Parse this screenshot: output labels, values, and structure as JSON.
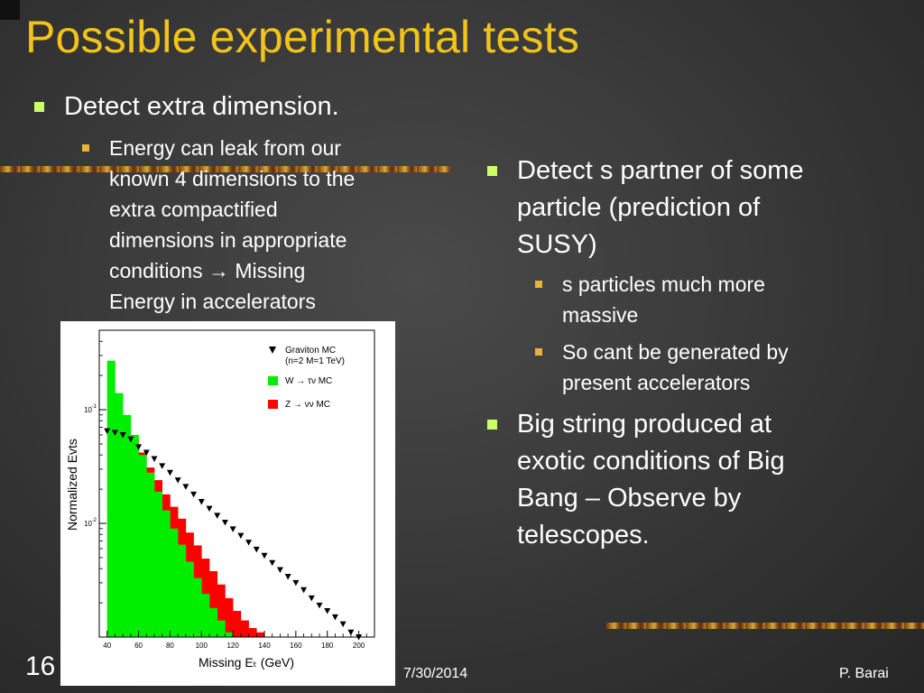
{
  "slide": {
    "title": "Possible experimental tests",
    "left_bullet": "Detect extra dimension.",
    "left_sub_bullet": [
      "Energy can leak from our",
      "known 4 dimensions to the",
      "extra compactified",
      "dimensions in appropriate",
      "conditions → Missing",
      "Energy in accelerators"
    ],
    "right_bullets": [
      {
        "lines": [
          "Detect s partner of some",
          "particle (prediction of",
          "SUSY)"
        ]
      },
      {
        "lines": [
          "Big string produced at",
          "exotic conditions of Big",
          "Bang – Observe by",
          "telescopes."
        ]
      }
    ],
    "right_sub_bullets": [
      {
        "lines": [
          "s particles much more",
          "massive"
        ]
      },
      {
        "lines": [
          "So cant be generated by",
          "present accelerators"
        ]
      }
    ],
    "footer": {
      "slide_number": "16",
      "date": "7/30/2014",
      "author": "P. Barai"
    }
  },
  "colors": {
    "title": "#f2c31a",
    "bullet_square": "#ccff66",
    "sub_bullet_square": "#e9b23a",
    "graviton": "#000000",
    "w_fill": "#00ee00",
    "z_fill": "#ff0000"
  },
  "chart_data": {
    "type": "bar",
    "xlabel": "Missing Eₜ (GeV)",
    "ylabel": "Normalized Evts",
    "y_scale": "log",
    "xlim": [
      35,
      210
    ],
    "ylim": [
      0.001,
      0.5
    ],
    "x_ticks": [
      "40",
      "60",
      "80",
      "100",
      "120",
      "140",
      "160",
      "180",
      "200"
    ],
    "y_ticks": [
      {
        "value": 0.1,
        "base": "10",
        "exp": "-1"
      },
      {
        "value": 0.01,
        "base": "10",
        "exp": "-2"
      }
    ],
    "legend": [
      {
        "marker": "triangle",
        "line1": "Graviton MC",
        "line2": "(n=2 M=1 TeV)"
      },
      {
        "marker": "green-square",
        "line1": "W → τν MC",
        "line2": ""
      },
      {
        "marker": "red-square",
        "line1": "Z → νν MC",
        "line2": ""
      }
    ],
    "bin_width": 5,
    "series": [
      {
        "name": "W → τν MC",
        "bin_starts": [
          40,
          45,
          50,
          55,
          60,
          65,
          70,
          75,
          80,
          85,
          90,
          95,
          100,
          105,
          110,
          115,
          120
        ],
        "values": [
          0.27,
          0.14,
          0.09,
          0.06,
          0.04,
          0.028,
          0.019,
          0.013,
          0.009,
          0.0065,
          0.0046,
          0.0033,
          0.0024,
          0.0018,
          0.0014,
          0.0011,
          0.001
        ]
      },
      {
        "name": "Z → νν MC",
        "bin_starts": [
          45,
          50,
          55,
          60,
          65,
          70,
          75,
          80,
          85,
          90,
          95,
          100,
          105,
          110,
          115,
          120,
          125,
          130,
          135,
          140
        ],
        "values": [
          0.08,
          0.07,
          0.055,
          0.042,
          0.031,
          0.024,
          0.018,
          0.014,
          0.011,
          0.0083,
          0.0064,
          0.0049,
          0.0038,
          0.0029,
          0.0022,
          0.0017,
          0.0014,
          0.0012,
          0.0011,
          0.001
        ]
      },
      {
        "name": "Graviton MC (n=2 M=1 TeV)",
        "x": [
          40,
          45,
          50,
          55,
          60,
          65,
          70,
          75,
          80,
          85,
          90,
          95,
          100,
          105,
          110,
          115,
          120,
          125,
          130,
          135,
          140,
          145,
          150,
          155,
          160,
          165,
          170,
          175,
          180,
          185,
          190,
          195,
          200
        ],
        "values": [
          0.065,
          0.063,
          0.06,
          0.055,
          0.047,
          0.042,
          0.037,
          0.032,
          0.028,
          0.024,
          0.021,
          0.018,
          0.0155,
          0.0135,
          0.0117,
          0.0102,
          0.0089,
          0.0078,
          0.0068,
          0.0059,
          0.0052,
          0.0045,
          0.0039,
          0.0034,
          0.003,
          0.0026,
          0.0022,
          0.0019,
          0.0017,
          0.0015,
          0.0013,
          0.0011,
          0.001
        ]
      }
    ]
  }
}
